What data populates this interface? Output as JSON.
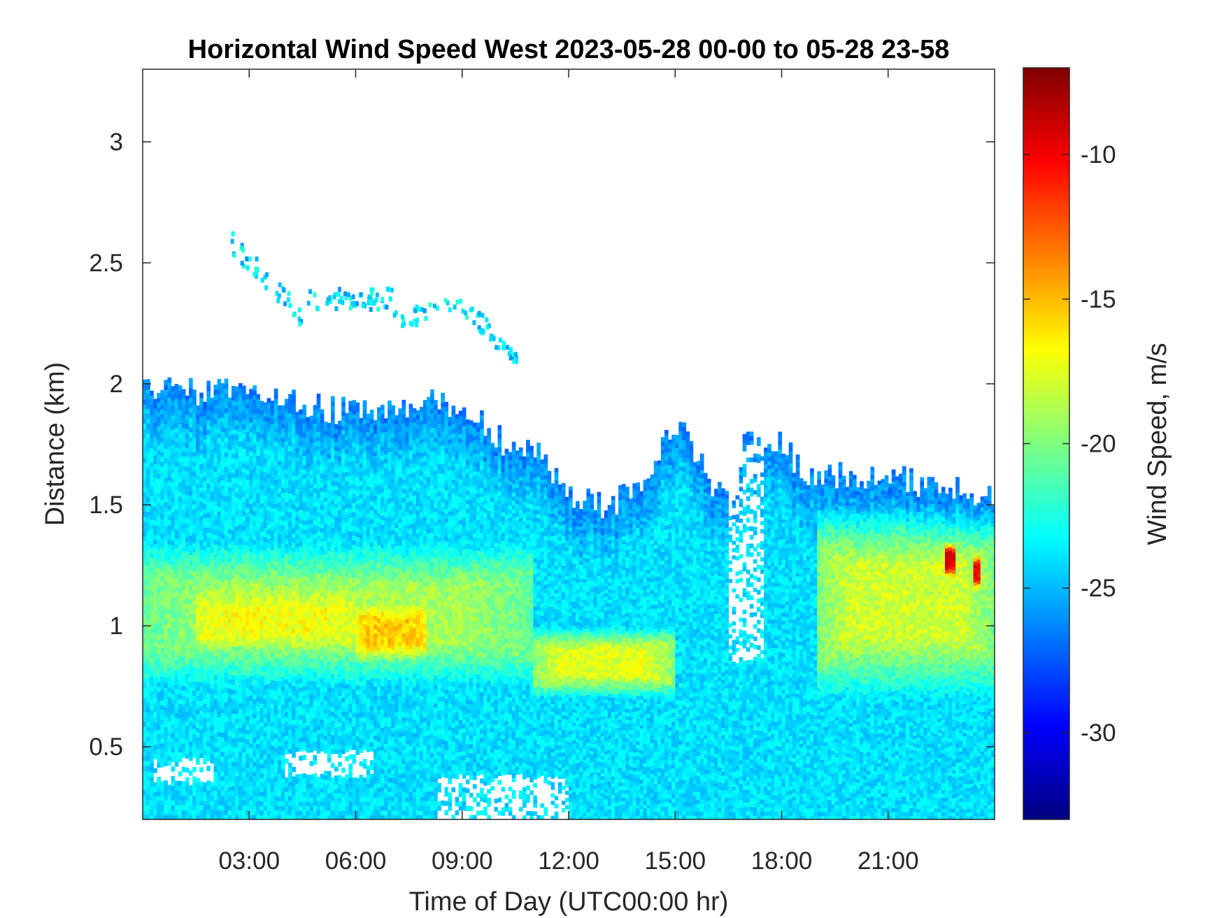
{
  "chart_data": {
    "type": "heatmap",
    "title": "Horizontal Wind Speed West 2023-05-28 00-00 to 05-28 23-58",
    "xlabel": "Time of Day (UTC00:00 hr)",
    "ylabel": "Distance (km)",
    "colorbar_label": "Wind Speed, m/s",
    "xlim_hours": [
      0,
      24
    ],
    "ylim_km": [
      0.2,
      3.3
    ],
    "x_ticks": [
      {
        "value": 3,
        "label": "03:00"
      },
      {
        "value": 6,
        "label": "06:00"
      },
      {
        "value": 9,
        "label": "09:00"
      },
      {
        "value": 12,
        "label": "12:00"
      },
      {
        "value": 15,
        "label": "15:00"
      },
      {
        "value": 18,
        "label": "18:00"
      },
      {
        "value": 21,
        "label": "21:00"
      }
    ],
    "y_ticks": [
      {
        "value": 0.5,
        "label": "0.5"
      },
      {
        "value": 1,
        "label": "1"
      },
      {
        "value": 1.5,
        "label": "1.5"
      },
      {
        "value": 2,
        "label": "2"
      },
      {
        "value": 2.5,
        "label": "2.5"
      },
      {
        "value": 3,
        "label": "3"
      }
    ],
    "colorbar_range": [
      -33,
      -7
    ],
    "colorbar_ticks": [
      {
        "value": -10,
        "label": "-10"
      },
      {
        "value": -15,
        "label": "-15"
      },
      {
        "value": -20,
        "label": "-20"
      },
      {
        "value": -25,
        "label": "-25"
      },
      {
        "value": -30,
        "label": "-30"
      }
    ],
    "colormap": "jet",
    "colormap_stops": [
      "#00007f",
      "#0000ff",
      "#007fff",
      "#00ffff",
      "#7fff7f",
      "#ffff00",
      "#ff7f00",
      "#ff0000",
      "#7f0000"
    ],
    "echo_top_km": [
      {
        "t": 0,
        "h": 2.0
      },
      {
        "t": 1,
        "h": 1.98
      },
      {
        "t": 2,
        "h": 1.96
      },
      {
        "t": 3,
        "h": 1.97
      },
      {
        "t": 4,
        "h": 1.94
      },
      {
        "t": 5,
        "h": 1.9
      },
      {
        "t": 6,
        "h": 1.88
      },
      {
        "t": 7,
        "h": 1.88
      },
      {
        "t": 8,
        "h": 1.93
      },
      {
        "t": 9,
        "h": 1.9
      },
      {
        "t": 10,
        "h": 1.78
      },
      {
        "t": 10.5,
        "h": 1.72
      },
      {
        "t": 11,
        "h": 1.76
      },
      {
        "t": 12,
        "h": 1.55
      },
      {
        "t": 13,
        "h": 1.5
      },
      {
        "t": 14,
        "h": 1.55
      },
      {
        "t": 15,
        "h": 1.85
      },
      {
        "t": 16,
        "h": 1.6
      },
      {
        "t": 16.5,
        "h": 1.5
      },
      {
        "t": 17,
        "h": 1.76
      },
      {
        "t": 18,
        "h": 1.75
      },
      {
        "t": 18.5,
        "h": 1.65
      },
      {
        "t": 19,
        "h": 1.62
      },
      {
        "t": 20,
        "h": 1.63
      },
      {
        "t": 21,
        "h": 1.62
      },
      {
        "t": 22,
        "h": 1.58
      },
      {
        "t": 23,
        "h": 1.56
      },
      {
        "t": 24,
        "h": 1.55
      }
    ],
    "features": [
      {
        "t0": 0,
        "t1": 24,
        "h0": 0.2,
        "h1": 2.0,
        "speed": -24
      },
      {
        "t0": 0,
        "t1": 11,
        "h0": 0.75,
        "h1": 1.35,
        "speed": -19
      },
      {
        "t0": 1.5,
        "t1": 6,
        "h0": 0.9,
        "h1": 1.15,
        "speed": -17
      },
      {
        "t0": 6,
        "t1": 8,
        "h0": 0.85,
        "h1": 1.1,
        "speed": -15.5
      },
      {
        "t0": 11,
        "t1": 15,
        "h0": 0.7,
        "h1": 1.0,
        "speed": -17.5
      },
      {
        "t0": 19,
        "t1": 24,
        "h0": 0.7,
        "h1": 1.5,
        "speed": -18
      },
      {
        "t0": 22.6,
        "t1": 22.9,
        "h0": 1.2,
        "h1": 1.35,
        "speed": -9
      },
      {
        "t0": 23.4,
        "t1": 23.6,
        "h0": 1.15,
        "h1": 1.3,
        "speed": -10
      },
      {
        "t0": 2.4,
        "t1": 10.5,
        "h0": 2.1,
        "h1": 2.65,
        "speed": -24
      }
    ],
    "gaps": [
      {
        "t0": 16.5,
        "t1": 17.5,
        "h0": 0.85,
        "h1": 1.75
      },
      {
        "t0": 8.3,
        "t1": 12,
        "h0": 0.2,
        "h1": 0.38
      },
      {
        "t0": 0.3,
        "t1": 2,
        "h0": 0.35,
        "h1": 0.45
      },
      {
        "t0": 4,
        "t1": 6.5,
        "h0": 0.38,
        "h1": 0.48
      }
    ]
  }
}
